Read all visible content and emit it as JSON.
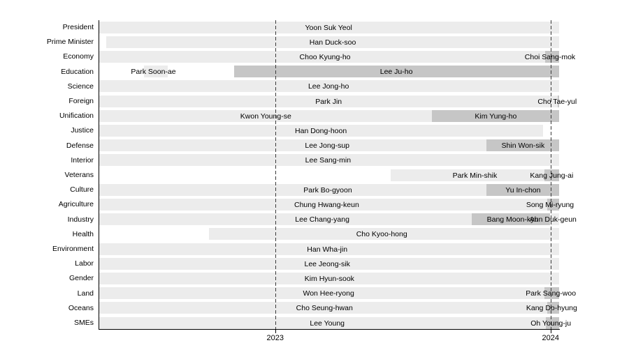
{
  "chart_data": {
    "type": "gantt",
    "title": "",
    "subtitle": "",
    "legend": null,
    "x_axis": {
      "domain": [
        2022.36,
        2024.031
      ],
      "ticks": [
        {
          "label": "2023",
          "value": 2023.0
        },
        {
          "label": "2024",
          "value": 2024.0
        }
      ],
      "gridline_style": "dashed"
    },
    "colors": {
      "background": "#ffffff",
      "tenure_light": "#ececec",
      "tenure_dark": "#c6c6c6",
      "axis": "#000000",
      "gridline": "#3a3a3a",
      "text": "#000000"
    },
    "rows": [
      {
        "ministry": "President",
        "segments": [
          {
            "name": "Yoon Suk Yeol",
            "start": 2022.36,
            "end": 2024.031,
            "shade": "light",
            "label_at": 2023.194
          }
        ]
      },
      {
        "ministry": "Prime Minister",
        "segments": [
          {
            "name": "Han Duck-soo",
            "start": 2022.387,
            "end": 2024.031,
            "shade": "light",
            "label_at": 2023.209
          }
        ]
      },
      {
        "ministry": "Economy",
        "segments": [
          {
            "name": "Choo Kyung-ho",
            "start": 2022.36,
            "end": 2023.981,
            "shade": "light",
            "label_at": 2023.181
          },
          {
            "name": "Choi Sang-mok",
            "start": 2023.981,
            "end": 2024.031,
            "shade": "dark",
            "label_at": 2023.998
          }
        ]
      },
      {
        "ministry": "Education",
        "segments": [
          {
            "name": "Park Soon-ae",
            "start": 2022.524,
            "end": 2022.61,
            "shade": "light",
            "label_at": 2022.558
          },
          {
            "name": "Lee Ju-ho",
            "start": 2022.852,
            "end": 2024.031,
            "shade": "dark",
            "label_at": 2023.44
          }
        ]
      },
      {
        "ministry": "Science",
        "segments": [
          {
            "name": "Lee Jong-ho",
            "start": 2022.36,
            "end": 2024.031,
            "shade": "light",
            "label_at": 2023.194
          }
        ]
      },
      {
        "ministry": "Foreign",
        "segments": [
          {
            "name": "Park Jin",
            "start": 2022.36,
            "end": 2024.027,
            "shade": "light",
            "label_at": 2023.194
          },
          {
            "name": "Cho Tae-yul",
            "start": 2024.027,
            "end": 2024.031,
            "shade": "dark",
            "label_at": 2024.024
          }
        ]
      },
      {
        "ministry": "Unification",
        "segments": [
          {
            "name": "Kwon Young-se",
            "start": 2022.36,
            "end": 2023.57,
            "shade": "light",
            "label_at": 2022.966
          },
          {
            "name": "Kim Yung-ho",
            "start": 2023.57,
            "end": 2024.031,
            "shade": "dark",
            "label_at": 2023.801
          }
        ]
      },
      {
        "ministry": "Justice",
        "segments": [
          {
            "name": "Han Dong-hoon",
            "start": 2022.36,
            "end": 2023.973,
            "shade": "light",
            "label_at": 2023.166
          }
        ]
      },
      {
        "ministry": "Defense",
        "segments": [
          {
            "name": "Lee Jong-sup",
            "start": 2022.36,
            "end": 2023.768,
            "shade": "light",
            "label_at": 2023.189
          },
          {
            "name": "Shin Won-sik",
            "start": 2023.768,
            "end": 2024.031,
            "shade": "dark",
            "label_at": 2023.9
          }
        ]
      },
      {
        "ministry": "Interior",
        "segments": [
          {
            "name": "Lee Sang-min",
            "start": 2022.36,
            "end": 2024.031,
            "shade": "light",
            "label_at": 2023.192
          }
        ]
      },
      {
        "ministry": "Veterans",
        "segments": [
          {
            "name": "Park Min-shik",
            "start": 2023.42,
            "end": 2023.978,
            "shade": "light",
            "label_at": 2023.725
          },
          {
            "name": "Kang Jung-ai",
            "start": 2023.978,
            "end": 2024.031,
            "shade": "dark",
            "label_at": 2024.004
          }
        ]
      },
      {
        "ministry": "Culture",
        "segments": [
          {
            "name": "Park Bo-gyoon",
            "start": 2022.36,
            "end": 2023.768,
            "shade": "light",
            "label_at": 2023.191
          },
          {
            "name": "Yu In-chon",
            "start": 2023.768,
            "end": 2024.031,
            "shade": "dark",
            "label_at": 2023.9
          }
        ]
      },
      {
        "ministry": "Agriculture",
        "segments": [
          {
            "name": "Chung Hwang-keun",
            "start": 2022.36,
            "end": 2023.989,
            "shade": "light",
            "label_at": 2023.187
          },
          {
            "name": "Song Mi-ryung",
            "start": 2023.989,
            "end": 2024.031,
            "shade": "dark",
            "label_at": 2023.998
          }
        ]
      },
      {
        "ministry": "Industry",
        "segments": [
          {
            "name": "Lee Chang-yang",
            "start": 2022.36,
            "end": 2023.714,
            "shade": "light",
            "label_at": 2023.171
          },
          {
            "name": "Bang Moon-kyu",
            "start": 2023.714,
            "end": 2023.998,
            "shade": "dark",
            "label_at": 2023.862
          },
          {
            "name": "Ahn Duk-geun",
            "start": 2024.004,
            "end": 2024.031,
            "shade": "light",
            "label_at": 2024.009
          }
        ]
      },
      {
        "ministry": "Health",
        "segments": [
          {
            "name": "Cho Kyoo-hong",
            "start": 2022.76,
            "end": 2024.031,
            "shade": "light",
            "label_at": 2023.387
          }
        ]
      },
      {
        "ministry": "Environment",
        "segments": [
          {
            "name": "Han Wha-jin",
            "start": 2022.36,
            "end": 2024.031,
            "shade": "light",
            "label_at": 2023.189
          }
        ]
      },
      {
        "ministry": "Labor",
        "segments": [
          {
            "name": "Lee Jeong-sik",
            "start": 2022.36,
            "end": 2024.031,
            "shade": "light",
            "label_at": 2023.189
          }
        ]
      },
      {
        "ministry": "Gender",
        "segments": [
          {
            "name": "Kim Hyun-sook",
            "start": 2022.36,
            "end": 2024.031,
            "shade": "light",
            "label_at": 2023.197
          }
        ]
      },
      {
        "ministry": "Land",
        "segments": [
          {
            "name": "Won Hee-ryong",
            "start": 2022.36,
            "end": 2023.978,
            "shade": "light",
            "label_at": 2023.194
          },
          {
            "name": "Park Sang-woo",
            "start": 2023.978,
            "end": 2024.031,
            "shade": "dark",
            "label_at": 2024.001
          }
        ]
      },
      {
        "ministry": "Oceans",
        "segments": [
          {
            "name": "Cho Seung-hwan",
            "start": 2022.36,
            "end": 2023.989,
            "shade": "light",
            "label_at": 2023.179
          },
          {
            "name": "Kang Do-hyung",
            "start": 2023.989,
            "end": 2024.031,
            "shade": "dark",
            "label_at": 2024.004
          }
        ]
      },
      {
        "ministry": "SMEs",
        "segments": [
          {
            "name": "Lee Young",
            "start": 2022.36,
            "end": 2023.983,
            "shade": "light",
            "label_at": 2023.189
          },
          {
            "name": "Oh Young-ju",
            "start": 2023.983,
            "end": 2024.031,
            "shade": "dark",
            "label_at": 2024.001
          }
        ]
      }
    ]
  }
}
